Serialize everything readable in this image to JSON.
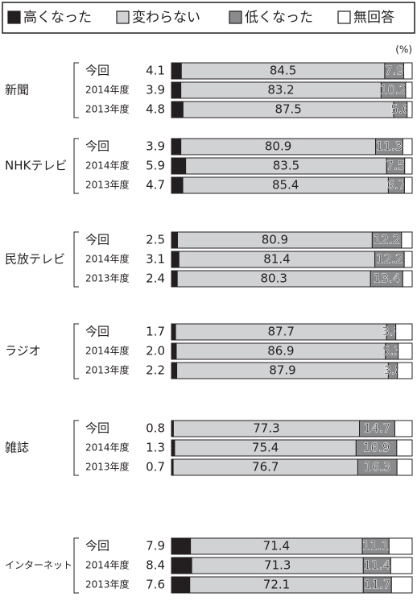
{
  "chart_data": {
    "type": "stacked-bar-100",
    "unit": "(%)",
    "groups": [
      "新聞",
      "NHKテレビ",
      "民放テレビ",
      "ラジオ",
      "雑誌",
      "インターネット"
    ],
    "categories": [
      "今回",
      "2014年度",
      "2013年度",
      "今回",
      "2014年度",
      "2013年度",
      "今回",
      "2014年度",
      "2013年度",
      "今回",
      "2014年度",
      "2013年度",
      "今回",
      "2014年度",
      "2013年度",
      "今回",
      "2014年度",
      "2013年度"
    ],
    "xlim": [
      0,
      100
    ],
    "series": [
      {
        "name": "高くなった",
        "color": "#231f20",
        "values": [
          4.1,
          3.9,
          4.8,
          3.9,
          5.9,
          4.7,
          2.5,
          3.1,
          2.4,
          1.7,
          2.0,
          2.2,
          0.8,
          1.3,
          0.7,
          7.9,
          8.4,
          7.6
        ],
        "value_labels": [
          "4.1",
          "3.9",
          "4.8",
          "3.9",
          "5.9",
          "4.7",
          "2.5",
          "3.1",
          "2.4",
          "1.7",
          "2.0",
          "2.2",
          "0.8",
          "1.3",
          "0.7",
          "7.9",
          "8.4",
          "7.6"
        ]
      },
      {
        "name": "変わらない",
        "color": "#d1d2d4",
        "values": [
          84.5,
          83.2,
          87.5,
          80.9,
          83.5,
          85.4,
          80.9,
          81.4,
          80.3,
          87.7,
          86.9,
          87.9,
          77.3,
          75.4,
          76.7,
          71.4,
          71.3,
          72.1
        ],
        "value_labels": [
          "84.5",
          "83.2",
          "87.5",
          "80.9",
          "83.5",
          "85.4",
          "80.9",
          "81.4",
          "80.3",
          "87.7",
          "86.9",
          "87.9",
          "77.3",
          "75.4",
          "76.7",
          "71.4",
          "71.3",
          "72.1"
        ]
      },
      {
        "name": "低くなった",
        "color": "#8a8b8d",
        "values": [
          7.9,
          10.2,
          5.6,
          11.3,
          7.5,
          6.7,
          12.2,
          12.2,
          13.4,
          3.8,
          5.3,
          3.8,
          14.7,
          16.9,
          16.3,
          11.1,
          11.4,
          11.7
        ],
        "value_labels": [
          "7.9",
          "10.2",
          "5.6",
          "11.3",
          "7.5",
          "6.7",
          "12.2",
          "12.2",
          "13.4",
          "3.8",
          "5.3",
          "3.8",
          "14.7",
          "16.9",
          "16.3",
          "11.1",
          "11.4",
          "11.7"
        ]
      },
      {
        "name": "無回答",
        "color": "#ffffff",
        "values": [
          3.5,
          2.7,
          2.1,
          3.9,
          3.1,
          3.2,
          4.4,
          3.3,
          3.9,
          6.8,
          5.8,
          6.1,
          7.2,
          6.4,
          6.3,
          9.6,
          8.9,
          8.6
        ]
      }
    ]
  }
}
